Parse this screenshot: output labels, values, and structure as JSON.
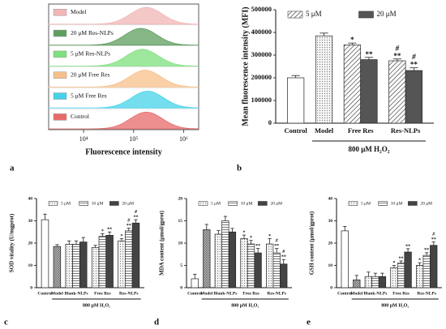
{
  "chart_data": [
    {
      "type": "ridge",
      "panel": "a",
      "xlabel": "Fluorescence intensity",
      "log": true,
      "xlim": [
        2000,
        2000000
      ],
      "xticks": [
        {
          "value": 10000,
          "label": "10⁴"
        },
        {
          "value": 100000,
          "label": "10⁵"
        },
        {
          "value": 1000000,
          "label": "10⁶"
        }
      ],
      "series": [
        {
          "name": "Model",
          "color": "#f2b5b5",
          "peak": 180000
        },
        {
          "name": "20 μM Res-NLPs",
          "color": "#5f9e5f",
          "peak": 140000
        },
        {
          "name": "5 μM Res-NLPs",
          "color": "#7ee07e",
          "peak": 150000
        },
        {
          "name": "20 μM Free Res",
          "color": "#f7c08a",
          "peak": 170000
        },
        {
          "name": "5 μM Free Res",
          "color": "#45d3ea",
          "peak": 190000
        },
        {
          "name": "Control",
          "color": "#e86a6a",
          "peak": 180000
        }
      ]
    },
    {
      "type": "bar",
      "panel": "b",
      "ylabel": "Mean fluorescence intensity (MFI)",
      "group_label": "800 μM H₂O₂",
      "ylim": [
        0,
        500000
      ],
      "yticks": [
        0,
        100000,
        200000,
        300000,
        400000,
        500000
      ],
      "controls": {
        "categories": [
          "Control",
          "Model"
        ],
        "values": [
          200000,
          385000
        ],
        "errors": [
          10000,
          12000
        ],
        "patterns": [
          "white",
          "dots"
        ]
      },
      "groups": {
        "categories": [
          "Free Res",
          "Res-NLPs"
        ],
        "series": [
          {
            "name": "5 μM",
            "pattern": "diagonal",
            "color": "#444444",
            "values": [
              345000,
              275000
            ],
            "errors": [
              8000,
              8000
            ],
            "signif": [
              [
                "*"
              ],
              [
                "#",
                "**"
              ]
            ]
          },
          {
            "name": "20 μM",
            "pattern": "solid",
            "color": "#555555",
            "values": [
              280000,
              232000
            ],
            "errors": [
              10000,
              12000
            ],
            "signif": [
              [
                "**"
              ],
              [
                "#",
                "**"
              ]
            ]
          }
        ]
      }
    },
    {
      "type": "bar",
      "panel": "c",
      "ylabel": "SOD vitality (U/mgprot)",
      "group_label": "800 μM H₂O₂",
      "ylim": [
        0,
        40
      ],
      "yticks": [
        0,
        10,
        20,
        30,
        40
      ],
      "controls": {
        "categories": [
          "Control",
          "Model"
        ],
        "values": [
          30.5,
          18.5
        ],
        "errors": [
          2.5,
          0.8
        ],
        "patterns": [
          "white",
          "cross"
        ]
      },
      "groups": {
        "categories": [
          "Blank-NLPs",
          "Free Res",
          "Res-NLPs"
        ],
        "series": [
          {
            "name": "5 μM",
            "pattern": "dots",
            "color": "#444444",
            "values": [
              19.5,
              18,
              21
            ],
            "errors": [
              1.5,
              1,
              1
            ],
            "signif": [
              null,
              null,
              [
                "*"
              ]
            ]
          },
          {
            "name": "10 μM",
            "pattern": "hlines",
            "color": "#444444",
            "values": [
              19.5,
              23,
              25.5
            ],
            "errors": [
              1.5,
              1.2,
              1.2
            ],
            "signif": [
              null,
              [
                "*"
              ],
              [
                "#",
                "**"
              ]
            ]
          },
          {
            "name": "20 μM",
            "pattern": "solid",
            "color": "#444444",
            "values": [
              20.5,
              23.5,
              29
            ],
            "errors": [
              2,
              1.5,
              1.5
            ],
            "signif": [
              null,
              [
                "**"
              ],
              [
                "#",
                "**"
              ]
            ]
          }
        ]
      }
    },
    {
      "type": "bar",
      "panel": "d",
      "ylabel": "MDA content (μmol/gprot)",
      "group_label": "800 μM H₂O₂",
      "ylim": [
        0,
        20
      ],
      "yticks": [
        0,
        5,
        10,
        15,
        20
      ],
      "controls": {
        "categories": [
          "Control",
          "Model"
        ],
        "values": [
          2,
          13
        ],
        "errors": [
          1,
          1.2
        ],
        "patterns": [
          "white",
          "cross"
        ]
      },
      "groups": {
        "categories": [
          "Blank-NLPs",
          "Free Res",
          "Res-NLPs"
        ],
        "series": [
          {
            "name": "5 μM",
            "pattern": "dots",
            "color": "#444444",
            "values": [
              12,
              11,
              9.8
            ],
            "errors": [
              0.8,
              0.8,
              1.2
            ],
            "signif": [
              null,
              [
                "*"
              ],
              [
                "*"
              ]
            ]
          },
          {
            "name": "10 μM",
            "pattern": "hlines",
            "color": "#444444",
            "values": [
              15,
              9.8,
              7.8
            ],
            "errors": [
              1,
              0.8,
              1
            ],
            "signif": [
              null,
              [
                "*"
              ],
              [
                "#",
                "**"
              ]
            ]
          },
          {
            "name": "20 μM",
            "pattern": "solid",
            "color": "#444444",
            "values": [
              12.5,
              7.8,
              5.3
            ],
            "errors": [
              0.8,
              1,
              1
            ],
            "signif": [
              null,
              [
                "**"
              ],
              [
                "#",
                "**"
              ]
            ]
          }
        ]
      }
    },
    {
      "type": "bar",
      "panel": "e",
      "ylabel": "GSH content (μmol/gprot)",
      "group_label": "800 μM H₂O₂",
      "ylim": [
        0,
        40
      ],
      "yticks": [
        0,
        10,
        20,
        30,
        40
      ],
      "controls": {
        "categories": [
          "Control",
          "Model"
        ],
        "values": [
          25.5,
          3.5
        ],
        "errors": [
          2,
          2
        ],
        "patterns": [
          "white",
          "cross"
        ]
      },
      "groups": {
        "categories": [
          "Blank-NLPs",
          "Free Res",
          "Res-NLPs"
        ],
        "series": [
          {
            "name": "5 μM",
            "pattern": "dots",
            "color": "#444444",
            "values": [
              5,
              9,
              10
            ],
            "errors": [
              2,
              1,
              1.2
            ],
            "signif": [
              null,
              [
                "*"
              ],
              [
                "*"
              ]
            ]
          },
          {
            "name": "10 μM",
            "pattern": "hlines",
            "color": "#444444",
            "values": [
              5,
              11,
              14.5
            ],
            "errors": [
              1.5,
              1,
              1.2
            ],
            "signif": [
              null,
              [
                "**"
              ],
              [
                "**"
              ]
            ]
          },
          {
            "name": "20 μM",
            "pattern": "solid",
            "color": "#444444",
            "values": [
              5,
              16,
              19
            ],
            "errors": [
              1.5,
              1.5,
              1.5
            ],
            "signif": [
              null,
              [
                "**"
              ],
              [
                "#",
                "**"
              ]
            ]
          }
        ]
      }
    }
  ]
}
